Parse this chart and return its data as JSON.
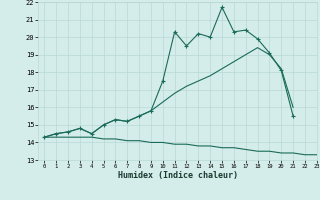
{
  "xlabel": "Humidex (Indice chaleur)",
  "x_values": [
    0,
    1,
    2,
    3,
    4,
    5,
    6,
    7,
    8,
    9,
    10,
    11,
    12,
    13,
    14,
    15,
    16,
    17,
    18,
    19,
    20,
    21,
    22,
    23
  ],
  "line1": [
    14.3,
    14.5,
    14.6,
    14.8,
    14.5,
    15.0,
    15.3,
    15.2,
    15.5,
    15.8,
    17.5,
    20.3,
    19.5,
    20.2,
    20.0,
    21.7,
    20.3,
    20.4,
    19.9,
    19.1,
    18.1,
    15.5,
    null,
    null
  ],
  "line2": [
    14.3,
    14.5,
    14.6,
    14.8,
    14.5,
    15.0,
    15.3,
    15.2,
    15.5,
    15.8,
    16.3,
    16.8,
    17.2,
    17.5,
    17.8,
    18.2,
    18.6,
    19.0,
    19.4,
    19.0,
    18.2,
    16.0,
    null,
    null
  ],
  "line3": [
    14.3,
    14.3,
    14.3,
    14.3,
    14.3,
    14.2,
    14.2,
    14.1,
    14.1,
    14.0,
    14.0,
    13.9,
    13.9,
    13.8,
    13.8,
    13.7,
    13.7,
    13.6,
    13.5,
    13.5,
    13.4,
    13.4,
    13.3,
    13.3
  ],
  "line_color": "#1a6b5a",
  "bg_color": "#d4ecea",
  "grid_color": "#b8d8d5",
  "ylim": [
    13,
    22
  ],
  "xlim": [
    -0.5,
    23
  ],
  "yticks": [
    13,
    14,
    15,
    16,
    17,
    18,
    19,
    20,
    21,
    22
  ],
  "xticks": [
    0,
    1,
    2,
    3,
    4,
    5,
    6,
    7,
    8,
    9,
    10,
    11,
    12,
    13,
    14,
    15,
    16,
    17,
    18,
    19,
    20,
    21,
    22,
    23
  ]
}
